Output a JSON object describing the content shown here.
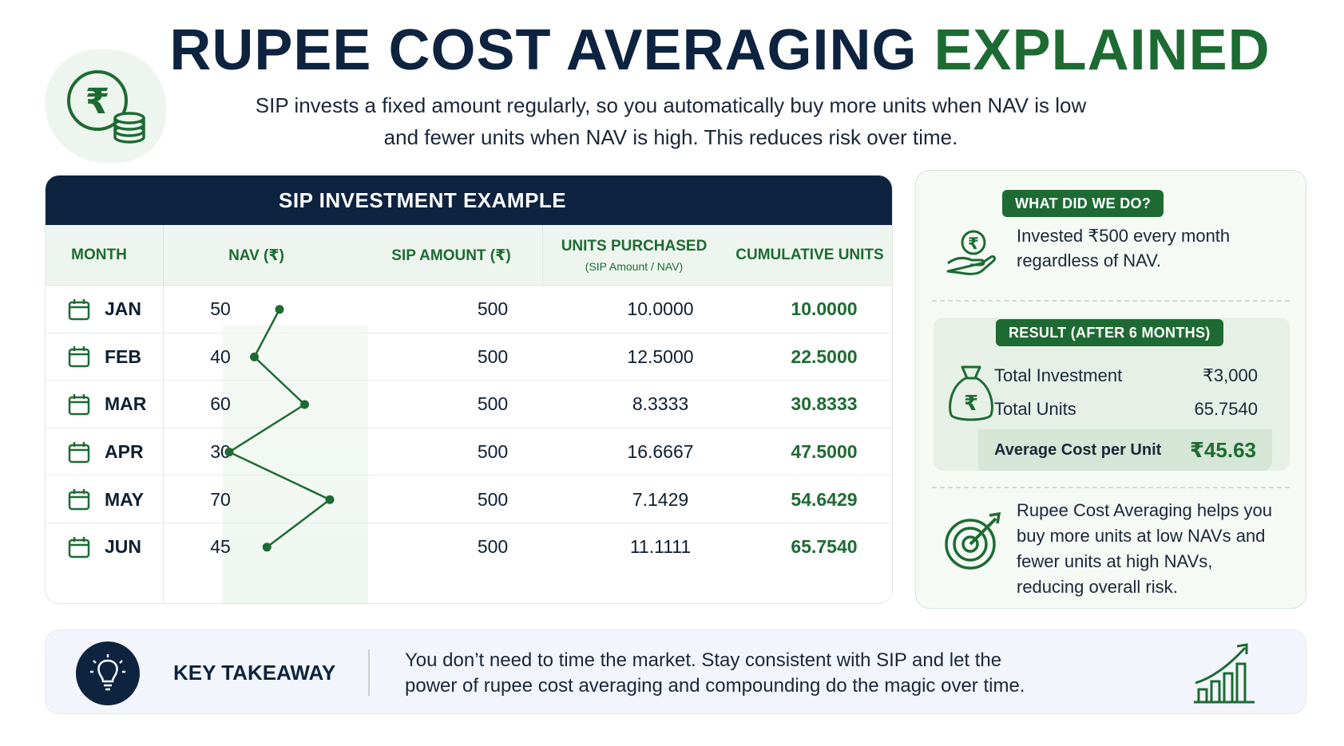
{
  "header": {
    "title_main": "RUPEE COST AVERAGING",
    "title_accent": "EXPLAINED",
    "subtitle_line1": "SIP invests a fixed amount regularly, so you automatically buy more units when NAV is low",
    "subtitle_line2": "and fewer units when NAV is high. This reduces risk over time."
  },
  "table": {
    "title": "SIP INVESTMENT EXAMPLE",
    "columns": {
      "month": "MONTH",
      "nav": "NAV (₹)",
      "sip": "SIP AMOUNT (₹)",
      "units": "UNITS PURCHASED",
      "units_sub": "(SIP Amount / NAV)",
      "cumulative": "CUMULATIVE UNITS"
    },
    "rows": [
      {
        "month": "JAN",
        "nav": "50",
        "sip": "500",
        "units": "10.0000",
        "cumulative": "10.0000"
      },
      {
        "month": "FEB",
        "nav": "40",
        "sip": "500",
        "units": "12.5000",
        "cumulative": "22.5000"
      },
      {
        "month": "MAR",
        "nav": "60",
        "sip": "500",
        "units": "8.3333",
        "cumulative": "30.8333"
      },
      {
        "month": "APR",
        "nav": "30",
        "sip": "500",
        "units": "16.6667",
        "cumulative": "47.5000"
      },
      {
        "month": "MAY",
        "nav": "70",
        "sip": "500",
        "units": "7.1429",
        "cumulative": "54.6429"
      },
      {
        "month": "JUN",
        "nav": "45",
        "sip": "500",
        "units": "11.1111",
        "cumulative": "65.7540"
      }
    ]
  },
  "panel": {
    "what_label": "WHAT DID WE DO?",
    "what_text_line1": "Invested ₹500 every month",
    "what_text_line2": "regardless of NAV.",
    "result_label": "RESULT (AFTER 6 MONTHS)",
    "total_investment_label": "Total Investment",
    "total_investment_value": "₹3,000",
    "total_units_label": "Total Units",
    "total_units_value": "65.7540",
    "avg_cost_label": "Average Cost per Unit",
    "avg_cost_value": "₹45.63",
    "benefit_line1": "Rupee Cost Averaging helps you",
    "benefit_line2": "buy more units at low NAVs and",
    "benefit_line3": "fewer units at high NAVs,",
    "benefit_line4": "reducing overall risk."
  },
  "takeaway": {
    "label": "KEY TAKEAWAY",
    "line1": "You don’t need to time the market. Stay consistent with SIP and let the",
    "line2": "power of rupee cost averaging and compounding do the magic over time."
  },
  "icons": {
    "logo": "rupee-coins-icon",
    "calendar": "calendar-icon",
    "hand": "rupee-hand-icon",
    "bag": "money-bag-icon",
    "target": "target-icon",
    "bulb": "lightbulb-icon",
    "growth": "growth-chart-icon"
  },
  "colors": {
    "navy": "#0d2340",
    "green": "#1d6b33",
    "mint": "#eef5ee"
  }
}
